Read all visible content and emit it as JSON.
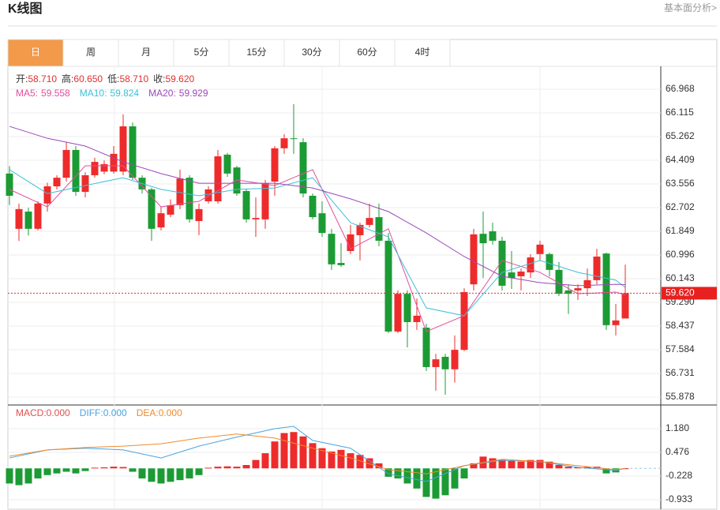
{
  "header": {
    "title": "K线图",
    "link": "基本面分析>"
  },
  "tabs": [
    "日",
    "周",
    "月",
    "5分",
    "15分",
    "30分",
    "60分",
    "4时"
  ],
  "active_tab": 0,
  "info": [
    {
      "label": "开:",
      "value": "58.710"
    },
    {
      "label": "高:",
      "value": "60.650"
    },
    {
      "label": "低:",
      "value": "58.710"
    },
    {
      "label": "收:",
      "value": "59.620"
    }
  ],
  "chart_data": [
    {
      "type": "candlestick",
      "up_color": "#ee2b2b",
      "down_color": "#1c9b35",
      "ylim": [
        55.594,
        67.764
      ],
      "yticks": [
        55.878,
        56.731,
        57.584,
        58.437,
        {
          "value": 59.29,
          "label": "59.290"
        },
        60.143,
        60.996,
        61.849,
        62.702,
        63.556,
        64.409,
        65.262,
        66.115,
        66.968
      ],
      "grid": true,
      "last_price": {
        "value": 59.62,
        "label": "59.620"
      },
      "ohlc": [
        [
          63.93,
          64.2,
          62.8,
          63.13
        ],
        [
          61.94,
          62.85,
          61.5,
          62.65
        ],
        [
          62.56,
          62.7,
          61.7,
          61.94
        ],
        [
          61.94,
          62.93,
          61.88,
          62.85
        ],
        [
          62.85,
          63.6,
          62.56,
          63.47
        ],
        [
          63.47,
          63.87,
          63.36,
          63.78
        ],
        [
          63.78,
          65.06,
          63.64,
          64.78
        ],
        [
          64.78,
          64.92,
          63.13,
          63.27
        ],
        [
          63.27,
          63.98,
          63.07,
          63.87
        ],
        [
          63.87,
          64.5,
          63.78,
          64.35
        ],
        [
          64.0,
          64.4,
          63.9,
          64.27
        ],
        [
          64.0,
          64.92,
          63.93,
          64.64
        ],
        [
          64.0,
          66.06,
          63.87,
          65.63
        ],
        [
          65.63,
          65.77,
          63.7,
          63.78
        ],
        [
          63.78,
          63.87,
          63.21,
          63.36
        ],
        [
          63.36,
          63.42,
          61.51,
          61.94
        ],
        [
          61.99,
          62.73,
          61.88,
          62.5
        ],
        [
          62.45,
          63.0,
          62.36,
          62.79
        ],
        [
          62.79,
          64.07,
          62.65,
          63.75
        ],
        [
          63.78,
          63.87,
          62.16,
          62.28
        ],
        [
          62.22,
          62.85,
          61.71,
          62.65
        ],
        [
          62.93,
          63.47,
          62.85,
          63.36
        ],
        [
          62.93,
          64.78,
          62.85,
          64.55
        ],
        [
          64.61,
          64.67,
          63.81,
          63.93
        ],
        [
          64.15,
          64.21,
          63.13,
          63.21
        ],
        [
          63.3,
          63.36,
          62.16,
          62.28
        ],
        [
          62.28,
          63.07,
          61.65,
          62.33
        ],
        [
          62.28,
          63.7,
          61.94,
          63.58
        ],
        [
          63.64,
          64.92,
          63.13,
          64.84
        ],
        [
          64.84,
          65.35,
          64.64,
          65.2
        ],
        [
          65.2,
          66.43,
          64.64,
          65.18
        ],
        [
          65.06,
          65.2,
          63.07,
          63.21
        ],
        [
          63.13,
          63.21,
          62.28,
          62.36
        ],
        [
          62.5,
          62.93,
          61.65,
          61.79
        ],
        [
          61.76,
          61.94,
          60.46,
          60.66
        ],
        [
          60.71,
          61.42,
          60.57,
          60.63
        ],
        [
          61.14,
          62.08,
          61.03,
          61.74
        ],
        [
          61.71,
          62.16,
          60.8,
          62.08
        ],
        [
          62.08,
          62.85,
          61.99,
          62.33
        ],
        [
          62.36,
          62.85,
          61.31,
          61.51
        ],
        [
          61.51,
          61.79,
          58.18,
          58.24
        ],
        [
          58.24,
          59.72,
          58.18,
          59.6
        ],
        [
          59.6,
          59.72,
          57.67,
          58.58
        ],
        [
          58.58,
          59.43,
          58.3,
          58.81
        ],
        [
          58.38,
          58.52,
          56.82,
          56.96
        ],
        [
          56.96,
          57.44,
          56.11,
          57.24
        ],
        [
          57.33,
          57.44,
          55.96,
          56.88
        ],
        [
          56.88,
          58.1,
          56.4,
          57.58
        ],
        [
          57.58,
          59.8,
          57.53,
          59.66
        ],
        [
          59.94,
          61.94,
          59.72,
          61.74
        ],
        [
          61.76,
          62.56,
          60.17,
          61.42
        ],
        [
          61.85,
          62.16,
          61.37,
          61.51
        ],
        [
          61.51,
          61.65,
          59.72,
          59.89
        ],
        [
          60.37,
          61.14,
          59.77,
          60.17
        ],
        [
          60.23,
          60.51,
          59.72,
          60.4
        ],
        [
          60.37,
          61.03,
          60.17,
          60.91
        ],
        [
          61.03,
          61.51,
          60.8,
          61.37
        ],
        [
          61.03,
          61.08,
          60.23,
          60.46
        ],
        [
          60.46,
          60.74,
          59.52,
          59.6
        ],
        [
          59.72,
          59.94,
          58.87,
          59.6
        ],
        [
          59.72,
          59.94,
          59.38,
          59.8
        ],
        [
          59.8,
          60.51,
          59.52,
          60.09
        ],
        [
          60.09,
          61.22,
          59.94,
          60.94
        ],
        [
          61.05,
          61.08,
          58.3,
          58.47
        ],
        [
          58.47,
          59.23,
          58.1,
          58.64
        ],
        [
          58.71,
          60.65,
          58.71,
          59.62
        ]
      ],
      "series": [
        {
          "name": "MA5:",
          "color": "#e0509c",
          "x": [
            0,
            4,
            8,
            12,
            16,
            20,
            24,
            28,
            32,
            36,
            40,
            44,
            48,
            52,
            56,
            60,
            64,
            65
          ],
          "values": [
            63.36,
            62.73,
            64.21,
            64.21,
            62.73,
            62.93,
            63.7,
            63.5,
            64.07,
            61.22,
            61.94,
            58.24,
            58.81,
            60.8,
            60.37,
            59.6,
            59.66,
            59.558
          ]
        },
        {
          "name": "MA10:",
          "color": "#3fbfd6",
          "x": [
            0,
            4,
            8,
            12,
            16,
            20,
            24,
            28,
            32,
            36,
            40,
            44,
            48,
            52,
            56,
            60,
            64,
            65
          ],
          "values": [
            64.07,
            63.21,
            63.5,
            63.78,
            63.36,
            63.13,
            63.36,
            63.41,
            63.78,
            62.16,
            61.65,
            59.09,
            58.81,
            60.37,
            60.8,
            60.37,
            60.09,
            59.824
          ]
        },
        {
          "name": "MA20:",
          "color": "#9b49b8",
          "x": [
            0,
            4,
            8,
            12,
            16,
            20,
            24,
            28,
            32,
            36,
            40,
            44,
            48,
            52,
            56,
            60,
            64,
            65
          ],
          "values": [
            65.63,
            65.2,
            64.92,
            64.35,
            63.93,
            63.58,
            63.58,
            63.58,
            63.41,
            63.02,
            62.56,
            61.79,
            60.94,
            60.23,
            60.0,
            59.89,
            59.94,
            59.929
          ]
        }
      ]
    },
    {
      "type": "macd",
      "up_color": "#ee2b2b",
      "down_color": "#1c9b35",
      "ylim": [
        -1.238,
        1.837
      ],
      "yticks": [
        -0.933,
        -0.228,
        0.476,
        {
          "value": 1.18,
          "label": "1.180"
        }
      ],
      "grid": true,
      "histogram": {
        "name": "MACD:",
        "color": "#e05050",
        "legend": "0.000",
        "values": [
          -0.45,
          -0.5,
          -0.45,
          -0.3,
          -0.2,
          -0.15,
          -0.1,
          -0.15,
          -0.08,
          0.02,
          0.03,
          0.05,
          0.04,
          -0.1,
          -0.3,
          -0.4,
          -0.45,
          -0.4,
          -0.35,
          -0.3,
          -0.2,
          0.02,
          0.05,
          0.06,
          0.05,
          0.1,
          0.25,
          0.45,
          0.8,
          1.05,
          1.08,
          0.95,
          0.75,
          0.6,
          0.5,
          0.55,
          0.45,
          0.4,
          0.3,
          0.15,
          -0.25,
          -0.3,
          -0.45,
          -0.6,
          -0.85,
          -0.9,
          -0.8,
          -0.6,
          -0.3,
          0.15,
          0.35,
          0.3,
          0.25,
          0.22,
          0.2,
          0.25,
          0.25,
          0.2,
          0.1,
          0.05,
          0.03,
          0.04,
          0.05,
          -0.15,
          -0.12,
          0.0
        ]
      },
      "series": [
        {
          "name": "DIFF:",
          "color": "#4aa3df",
          "legend": "0.000",
          "x": [
            0,
            4,
            8,
            12,
            16,
            20,
            24,
            28,
            30,
            32,
            36,
            40,
            44,
            48,
            52,
            56,
            60,
            64,
            65
          ],
          "values": [
            0.31,
            0.55,
            0.6,
            0.55,
            0.31,
            0.66,
            0.93,
            1.18,
            1.25,
            0.83,
            0.6,
            -0.16,
            -0.39,
            0.08,
            0.24,
            0.2,
            0.03,
            -0.06,
            0.0
          ]
        },
        {
          "name": "DEA:",
          "color": "#f08a2c",
          "legend": "0.000",
          "x": [
            0,
            4,
            8,
            12,
            16,
            20,
            24,
            28,
            32,
            36,
            40,
            44,
            48,
            52,
            56,
            60,
            64,
            65
          ],
          "values": [
            0.36,
            0.55,
            0.62,
            0.66,
            0.73,
            0.9,
            1.02,
            0.9,
            0.6,
            0.31,
            -0.04,
            -0.16,
            0.08,
            0.27,
            0.2,
            0.08,
            -0.04,
            0.0
          ]
        }
      ]
    }
  ]
}
